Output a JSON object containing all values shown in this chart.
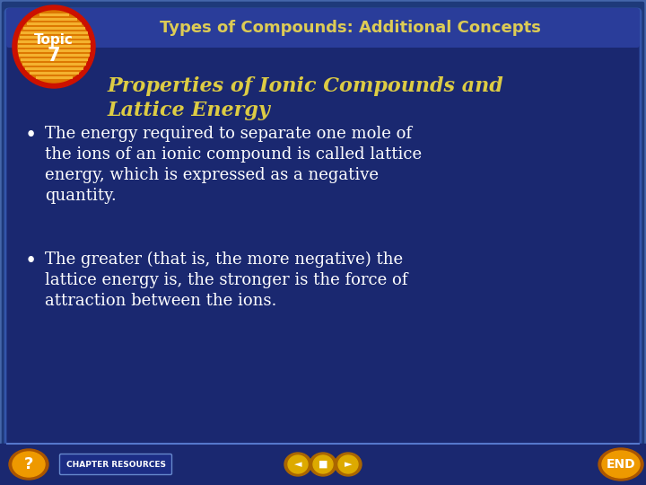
{
  "bg_outer": "#1e3a7a",
  "bg_main": "#1a2870",
  "bg_header_strip": "#2a3d9a",
  "header_text": "Types of Compounds: Additional Concepts",
  "header_text_color": "#ddcc55",
  "topic_label": "Topic",
  "topic_number": "7",
  "topic_text_color": "#ffffff",
  "topic_outer_color": "#cc1100",
  "topic_inner_color": "#ee8800",
  "topic_stripe_color": "#ffaa00",
  "subtitle_line1": "Properties of Ionic Compounds and",
  "subtitle_line2": "Lattice Energy",
  "subtitle_color": "#ddcc44",
  "bullet_color": "#ffffff",
  "bullet1_line1": "The energy required to separate one mole of",
  "bullet1_line2": "the ions of an ionic compound is called lattice",
  "bullet1_line3": "energy, which is expressed as a negative",
  "bullet1_line4": "quantity.",
  "bullet2_line1": "The greater (that is, the more negative) the",
  "bullet2_line2": "lattice energy is, the stronger is the force of",
  "bullet2_line3": "attraction between the ions.",
  "footer_bg": "#1a2870",
  "border_color": "#4466aa",
  "btn_outer": "#cc7700",
  "btn_inner": "#ffaa00",
  "btn_text": "#ffffff"
}
